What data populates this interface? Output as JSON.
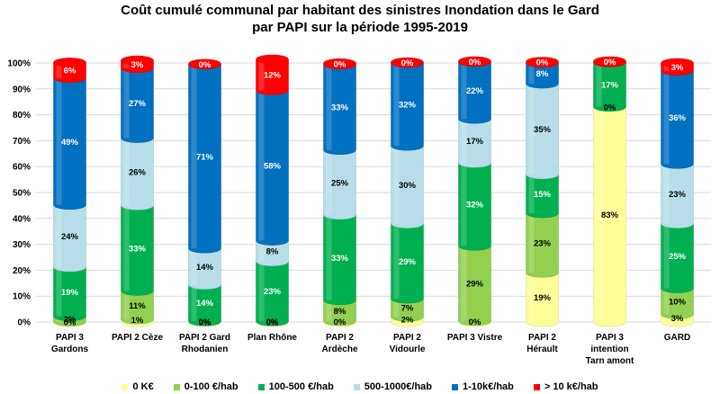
{
  "chart_data": {
    "type": "bar",
    "stacked": true,
    "title_lines": [
      "Coût cumulé communal par habitant des sinistres Inondation dans le Gard",
      "par PAPI sur la période 1995-2019"
    ],
    "categories": [
      [
        "PAPI 3",
        "Gardons"
      ],
      [
        "PAPI 2 Cèze"
      ],
      [
        "PAPI 2 Gard",
        "Rhodanien"
      ],
      [
        "Plan Rhône"
      ],
      [
        "PAPI 2",
        "Ardèche"
      ],
      [
        "PAPI 2",
        "Vidourle"
      ],
      [
        "PAPI 3 Vistre"
      ],
      [
        "PAPI 2",
        "Hérault"
      ],
      [
        "PAPI 3",
        "intention",
        "Tarn amont"
      ],
      [
        "GARD"
      ]
    ],
    "ylim": [
      0,
      100
    ],
    "yticks": [
      "0%",
      "10%",
      "20%",
      "30%",
      "40%",
      "50%",
      "60%",
      "70%",
      "80%",
      "90%",
      "100%"
    ],
    "grid": true,
    "legend_position": "bottom",
    "series": [
      {
        "name": "0 K€",
        "color": "#FFFF99",
        "values": [
          0.2,
          1,
          0.2,
          0.2,
          0.4,
          2,
          0.4,
          19,
          83,
          3
        ],
        "labels": [
          "0%",
          "1%",
          "0%",
          "0%",
          "0%",
          "2%",
          "0%",
          "19%",
          "83%",
          "3%"
        ]
      },
      {
        "name": "0-100 €/hab",
        "color": "#92D050",
        "values": [
          2,
          11,
          0.2,
          0.2,
          8,
          7,
          29,
          23,
          0.2,
          10
        ],
        "labels": [
          "2%",
          "11%",
          "0%",
          "0%",
          "8%",
          "7%",
          "29%",
          "23%",
          "0%",
          "10%"
        ]
      },
      {
        "name": "100-500 €/hab",
        "color": "#00B050",
        "values": [
          19,
          33,
          14,
          23,
          33,
          29,
          32,
          15,
          17,
          25
        ],
        "labels": [
          "19%",
          "33%",
          "14%",
          "23%",
          "33%",
          "29%",
          "32%",
          "15%",
          "17%",
          "25%"
        ]
      },
      {
        "name": "500-1000€/hab",
        "color": "#B7DEE8",
        "values": [
          24,
          26,
          14,
          8,
          25,
          30,
          17,
          35,
          0,
          23
        ],
        "labels": [
          "24%",
          "26%",
          "14%",
          "8%",
          "25%",
          "30%",
          "17%",
          "35%",
          "",
          "23%"
        ]
      },
      {
        "name": "1-10k€/hab",
        "color": "#0070C0",
        "values": [
          49,
          27,
          71,
          58,
          33,
          32,
          22,
          8,
          0,
          36
        ],
        "labels": [
          "49%",
          "27%",
          "71%",
          "58%",
          "33%",
          "32%",
          "22%",
          "8%",
          "",
          "36%"
        ]
      },
      {
        "name": "> 10 k€/hab",
        "color": "#FF0000",
        "values": [
          6,
          3,
          0.3,
          12,
          0.5,
          0.3,
          0.3,
          0.5,
          0.5,
          3
        ],
        "labels": [
          "6%",
          "3%",
          "0%",
          "12%",
          "0%",
          "0%",
          "0%",
          "0%",
          "0%",
          "3%"
        ]
      }
    ]
  }
}
